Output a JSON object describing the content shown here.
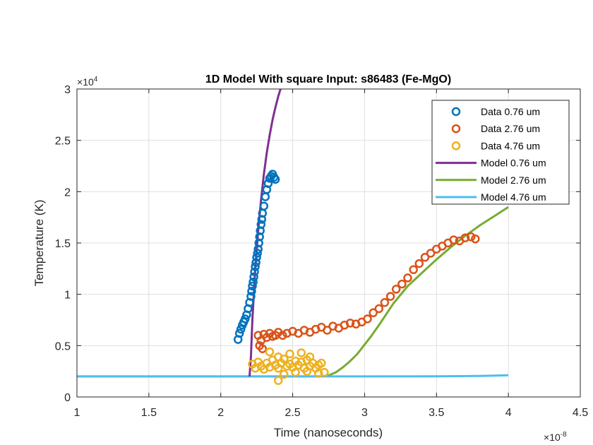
{
  "chart_data": {
    "type": "scatter",
    "title": "1D Model With square Input: s86483 (Fe-MgO)",
    "xlabel": "Time (nanoseconds)",
    "ylabel": "Temperature (K)",
    "x_multiplier_base": "10",
    "x_multiplier_exp": "-8",
    "y_multiplier_base": "10",
    "y_multiplier_exp": "4",
    "xlim": [
      1,
      4.5
    ],
    "ylim": [
      0,
      3
    ],
    "x_ticks": [
      1,
      1.5,
      2,
      2.5,
      3,
      3.5,
      4,
      4.5
    ],
    "x_tick_labels": [
      "1",
      "1.5",
      "2",
      "2.5",
      "3",
      "3.5",
      "4",
      "4.5"
    ],
    "y_ticks": [
      0,
      0.5,
      1,
      1.5,
      2,
      2.5,
      3
    ],
    "y_tick_labels": [
      "0",
      "0.5",
      "1",
      "1.5",
      "2",
      "2.5",
      "3"
    ],
    "grid": true,
    "legend_position": "top-right",
    "series": [
      {
        "name": "Data 0.76 um",
        "kind": "markers",
        "color": "#0072BD",
        "x": [
          2.12,
          2.13,
          2.14,
          2.15,
          2.16,
          2.17,
          2.18,
          2.19,
          2.2,
          2.21,
          2.215,
          2.22,
          2.225,
          2.23,
          2.235,
          2.24,
          2.245,
          2.25,
          2.255,
          2.26,
          2.265,
          2.27,
          2.275,
          2.28,
          2.285,
          2.29,
          2.3,
          2.31,
          2.32,
          2.33,
          2.34,
          2.35,
          2.36,
          2.37,
          2.38
        ],
        "y": [
          0.56,
          0.62,
          0.66,
          0.7,
          0.73,
          0.76,
          0.8,
          0.86,
          0.92,
          0.98,
          1.03,
          1.08,
          1.12,
          1.17,
          1.22,
          1.27,
          1.31,
          1.36,
          1.4,
          1.44,
          1.5,
          1.56,
          1.62,
          1.68,
          1.73,
          1.79,
          1.86,
          1.95,
          2.02,
          2.08,
          2.13,
          2.15,
          2.17,
          2.14,
          2.12
        ]
      },
      {
        "name": "Data 2.76 um",
        "kind": "markers",
        "color": "#D95319",
        "x": [
          2.26,
          2.28,
          2.3,
          2.32,
          2.34,
          2.36,
          2.38,
          2.4,
          2.43,
          2.46,
          2.5,
          2.54,
          2.58,
          2.62,
          2.66,
          2.7,
          2.74,
          2.78,
          2.82,
          2.86,
          2.9,
          2.94,
          2.98,
          3.02,
          3.06,
          3.1,
          3.14,
          3.18,
          3.22,
          3.26,
          3.3,
          3.34,
          3.38,
          3.42,
          3.46,
          3.5,
          3.54,
          3.58,
          3.62,
          3.66,
          3.7,
          3.74,
          3.77,
          2.27,
          2.29
        ],
        "y": [
          0.6,
          0.55,
          0.61,
          0.58,
          0.62,
          0.59,
          0.6,
          0.63,
          0.6,
          0.62,
          0.64,
          0.62,
          0.65,
          0.63,
          0.66,
          0.68,
          0.65,
          0.69,
          0.67,
          0.7,
          0.72,
          0.71,
          0.73,
          0.76,
          0.82,
          0.86,
          0.92,
          0.98,
          1.05,
          1.1,
          1.16,
          1.24,
          1.3,
          1.36,
          1.4,
          1.44,
          1.47,
          1.5,
          1.53,
          1.52,
          1.55,
          1.56,
          1.54,
          0.5,
          0.47
        ]
      },
      {
        "name": "Data 4.76 um",
        "kind": "markers",
        "color": "#EDB120",
        "x": [
          2.22,
          2.24,
          2.26,
          2.28,
          2.3,
          2.32,
          2.34,
          2.36,
          2.38,
          2.4,
          2.42,
          2.44,
          2.46,
          2.48,
          2.5,
          2.52,
          2.54,
          2.56,
          2.58,
          2.6,
          2.62,
          2.64,
          2.66,
          2.68,
          2.7,
          2.72,
          2.34,
          2.4,
          2.48,
          2.56,
          2.62,
          2.52,
          2.44,
          2.6,
          2.68,
          2.4
        ],
        "y": [
          0.32,
          0.28,
          0.34,
          0.3,
          0.27,
          0.33,
          0.29,
          0.36,
          0.31,
          0.28,
          0.33,
          0.37,
          0.3,
          0.32,
          0.29,
          0.35,
          0.31,
          0.34,
          0.28,
          0.36,
          0.3,
          0.33,
          0.28,
          0.31,
          0.33,
          0.24,
          0.44,
          0.39,
          0.42,
          0.43,
          0.39,
          0.24,
          0.22,
          0.25,
          0.23,
          0.16
        ]
      },
      {
        "name": "Model 0.76 um",
        "kind": "line",
        "color": "#7E2F8E",
        "x": [
          2.2,
          2.21,
          2.22,
          2.24,
          2.26,
          2.28,
          2.3,
          2.32,
          2.34,
          2.36,
          2.38,
          2.4,
          2.42
        ],
        "y": [
          0.2,
          0.4,
          0.75,
          1.25,
          1.62,
          1.92,
          2.17,
          2.38,
          2.55,
          2.7,
          2.82,
          2.93,
          3.02
        ]
      },
      {
        "name": "Model 2.76 um",
        "kind": "line",
        "color": "#77AC30",
        "x": [
          1.0,
          2.7,
          2.75,
          2.8,
          2.85,
          2.9,
          2.95,
          3.0,
          3.05,
          3.1,
          3.2,
          3.3,
          3.4,
          3.5,
          3.6,
          3.7,
          3.8,
          3.9,
          4.0
        ],
        "y": [
          0.2,
          0.2,
          0.21,
          0.24,
          0.29,
          0.35,
          0.42,
          0.51,
          0.6,
          0.7,
          0.91,
          1.08,
          1.21,
          1.34,
          1.46,
          1.57,
          1.67,
          1.76,
          1.85
        ]
      },
      {
        "name": "Model 4.76 um",
        "kind": "line",
        "color": "#4DBEEE",
        "x": [
          1.0,
          2.0,
          3.0,
          3.5,
          3.8,
          4.0
        ],
        "y": [
          0.2,
          0.2,
          0.2,
          0.201,
          0.205,
          0.212
        ]
      }
    ]
  }
}
